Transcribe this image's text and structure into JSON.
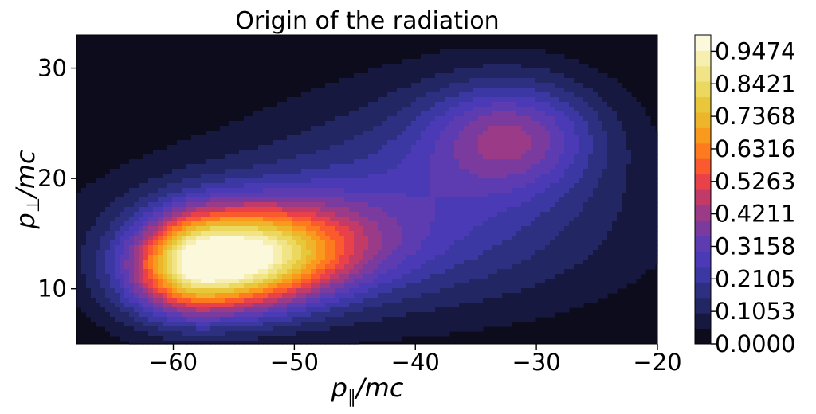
{
  "chart_data": {
    "type": "contour",
    "title": "Origin of the radiation",
    "xlabel": {
      "main": "p",
      "sub": "∥",
      "rest": "/mc"
    },
    "ylabel": {
      "main": "p",
      "sub": "⊥",
      "rest": "/mc"
    },
    "xlim": [
      -68,
      -20
    ],
    "ylim": [
      5,
      33
    ],
    "xticks": [
      -60,
      -50,
      -40,
      -30,
      -20
    ],
    "xtick_labels": [
      "−60",
      "−50",
      "−40",
      "−30",
      "−20"
    ],
    "yticks": [
      10,
      20,
      30
    ],
    "ytick_labels": [
      "10",
      "20",
      "30"
    ],
    "colorbar": {
      "range": [
        0,
        1
      ],
      "levels": 20,
      "tick_labels": [
        "0.0000",
        "0.1053",
        "0.2105",
        "0.3158",
        "0.4211",
        "0.5263",
        "0.6316",
        "0.7368",
        "0.8421",
        "0.9474"
      ],
      "colormap": "CMRmap",
      "colors": [
        "#0c0c1c",
        "#17183f",
        "#222662",
        "#2d2f80",
        "#3b37a3",
        "#4a3ab5",
        "#5d3bb1",
        "#7a3a9e",
        "#9b3a86",
        "#c23a68",
        "#e8414a",
        "#fb5a2e",
        "#fd7a1f",
        "#f99a1c",
        "#eeb42a",
        "#e8c73a",
        "#ecd75f",
        "#f1e487",
        "#f6efb0",
        "#fbf8dc"
      ]
    },
    "series": [
      {
        "type": "gaussian",
        "peak": 1.0,
        "x_center": -57,
        "y_center": 12.5,
        "x_sigma_left": 4.3,
        "x_sigma_right": 7.5,
        "y_sigma": 3.2,
        "tilt": 0.08
      },
      {
        "type": "gaussian",
        "peak": 0.3,
        "x_center": -32,
        "y_center": 24,
        "x_sigma": 5.0,
        "y_sigma": 3.5
      },
      {
        "type": "gaussian",
        "peak": 0.18,
        "x_center": -45,
        "y_center": 15,
        "x_sigma": 15,
        "y_sigma": 5.5
      },
      {
        "type": "gaussian",
        "peak": 0.12,
        "x_center": -38,
        "y_center": 21,
        "x_sigma": 10,
        "y_sigma": 6.5
      }
    ]
  }
}
